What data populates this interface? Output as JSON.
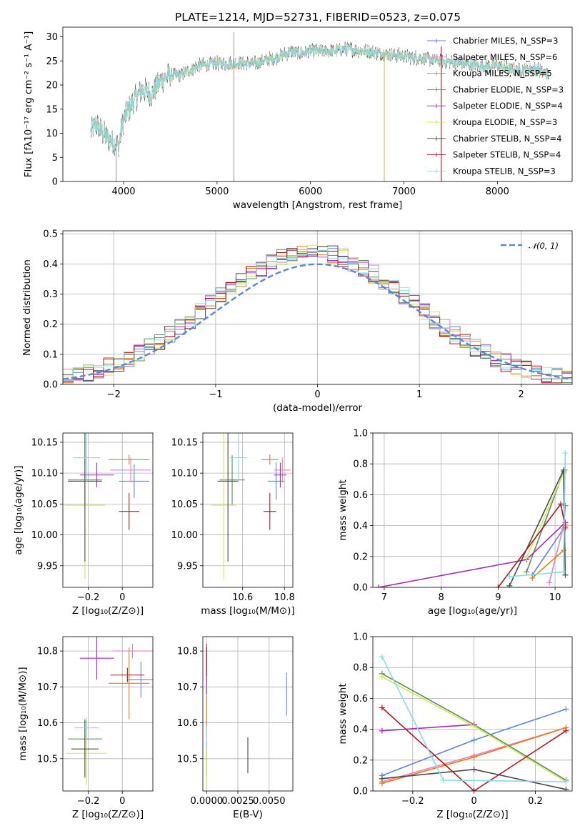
{
  "figure": {
    "title": "PLATE=1214, MJD=52731, FIBERID=0523, z=0.075"
  },
  "colors": {
    "Chabrier MILES": "#6482d6",
    "Salpeter MILES": "#e87fc6",
    "Kroupa MILES": "#ea7c10",
    "Chabrier ELODIE": "#5b8e5b",
    "Salpeter ELODIE": "#9b2fb0",
    "Kroupa ELODIE": "#d3e657",
    "Chabrier STELIB": "#4a4a4a",
    "Salpeter STELIB": "#b5151c",
    "Kroupa STELIB": "#86dbe6",
    "gaussian": "#5b86d4"
  },
  "chart_data": [
    {
      "id": "spectrum",
      "type": "line",
      "title": "PLATE=1214, MJD=52731, FIBERID=0523, z=0.075",
      "xlabel": "wavelength [Angstrom, rest frame]",
      "ylabel": "Flux [fλ10⁻¹⁷ erg cm⁻² s⁻¹ A⁻¹]",
      "xlim": [
        3350,
        8800
      ],
      "ylim": [
        0,
        32
      ],
      "xticks": [
        4000,
        5000,
        6000,
        7000,
        8000
      ],
      "yticks": [
        0,
        5,
        10,
        15,
        20,
        25,
        30
      ],
      "grid": false,
      "legend_position": "top-right",
      "series": [
        {
          "name": "Chabrier MILES, N_SSP=3"
        },
        {
          "name": "Salpeter MILES, N_SSP=6"
        },
        {
          "name": "Kroupa MILES, N_SSP=5"
        },
        {
          "name": "Chabrier ELODIE, N_SSP=3"
        },
        {
          "name": "Salpeter ELODIE, N_SSP=4"
        },
        {
          "name": "Kroupa ELODIE, N_SSP=3"
        },
        {
          "name": "Chabrier STELIB, N_SSP=4"
        },
        {
          "name": "Salpeter STELIB, N_SSP=4"
        },
        {
          "name": "Kroupa STELIB, N_SSP=3"
        }
      ],
      "envelope": {
        "x": [
          3650,
          3700,
          3800,
          3900,
          3950,
          4000,
          4100,
          4200,
          4300,
          4400,
          4500,
          4600,
          4800,
          5000,
          5200,
          5400,
          5600,
          5800,
          5900,
          6000,
          6200,
          6400,
          6600,
          6800,
          7000,
          7200,
          7400,
          7600,
          7800,
          8000,
          8200,
          8400,
          8550
        ],
        "y": [
          10,
          12,
          9.5,
          8,
          7.5,
          13,
          16.5,
          19,
          18,
          21,
          22,
          22,
          24,
          24.5,
          24.5,
          24.5,
          25.5,
          27,
          26.5,
          27,
          27,
          27.5,
          27,
          26.5,
          26,
          25.5,
          25,
          24.5,
          24,
          24,
          23,
          23.5,
          22
        ]
      },
      "spikes": [
        {
          "x": 3920,
          "y": [
            0,
            9
          ]
        },
        {
          "x": 5180,
          "y": [
            0,
            31
          ]
        },
        {
          "x": 6790,
          "y": [
            0,
            27
          ]
        },
        {
          "x": 7400,
          "y": [
            0,
            28
          ]
        }
      ]
    },
    {
      "id": "residuals",
      "type": "histogram",
      "xlabel": "(data-model)/error",
      "ylabel": "Normed distribution",
      "xlim": [
        -2.5,
        2.5
      ],
      "ylim": [
        0,
        0.51
      ],
      "xticks": [
        -2,
        -1,
        0,
        1,
        2
      ],
      "yticks": [
        0.0,
        0.1,
        0.2,
        0.3,
        0.4,
        0.5
      ],
      "grid": true,
      "legend_position": "top-right",
      "legend_label": "𝒩(0, 1)",
      "gaussian": {
        "mean": 0,
        "sigma": 1,
        "peak": 0.399
      },
      "bin_width": 0.1
    },
    {
      "id": "age-vs-Z",
      "type": "scatter",
      "xlabel": "Z [log₁₀(Z/Z⊙)]",
      "ylabel": "age  [log₁₀(age/yr)]",
      "xlim": [
        -0.35,
        0.18
      ],
      "ylim": [
        9.915,
        10.165
      ],
      "xticks": [
        -0.2,
        0.0
      ],
      "yticks": [
        9.95,
        10.0,
        10.05,
        10.1,
        10.15
      ],
      "grid": true,
      "points": [
        {
          "model": "Chabrier MILES",
          "x": 0.07,
          "y": 10.087,
          "xerr": 0.09,
          "yerr": 0.027
        },
        {
          "model": "Salpeter MILES",
          "x": 0.05,
          "y": 10.105,
          "xerr": 0.12,
          "yerr": 0.02
        },
        {
          "model": "Kroupa MILES",
          "x": 0.04,
          "y": 10.122,
          "xerr": 0.12,
          "yerr": 0.008
        },
        {
          "model": "Chabrier ELODIE",
          "x": -0.22,
          "y": 10.089,
          "xerr": 0.1,
          "yerr": 0.04
        },
        {
          "model": "Salpeter ELODIE",
          "x": -0.15,
          "y": 10.097,
          "xerr": 0.1,
          "yerr": 0.02
        },
        {
          "model": "Kroupa ELODIE",
          "x": -0.22,
          "y": 10.048,
          "xerr": 0.12,
          "yerr": 0.12
        },
        {
          "model": "Chabrier STELIB",
          "x": -0.22,
          "y": 10.087,
          "xerr": 0.1,
          "yerr": 0.13
        },
        {
          "model": "Salpeter STELIB",
          "x": 0.04,
          "y": 10.038,
          "xerr": 0.06,
          "yerr": 0.03
        },
        {
          "model": "Kroupa STELIB",
          "x": -0.21,
          "y": 10.125,
          "xerr": 0.08,
          "yerr": 0.04
        }
      ]
    },
    {
      "id": "age-vs-mass",
      "type": "scatter",
      "xlabel": "mass [log₁₀(M/M⊙)]",
      "ylabel": "",
      "xlim": [
        10.41,
        10.84
      ],
      "ylim": [
        9.915,
        10.165
      ],
      "xticks": [
        10.6,
        10.8
      ],
      "yticks": [
        9.95,
        10.0,
        10.05,
        10.1,
        10.15
      ],
      "grid": true,
      "points": [
        {
          "model": "Chabrier MILES",
          "x": 10.76,
          "y": 10.087,
          "xerr": 0.04,
          "yerr": 0.03
        },
        {
          "model": "Salpeter MILES",
          "x": 10.79,
          "y": 10.105,
          "xerr": 0.04,
          "yerr": 0.02
        },
        {
          "model": "Kroupa MILES",
          "x": 10.73,
          "y": 10.122,
          "xerr": 0.04,
          "yerr": 0.008
        },
        {
          "model": "Chabrier ELODIE",
          "x": 10.55,
          "y": 10.089,
          "xerr": 0.06,
          "yerr": 0.04
        },
        {
          "model": "Salpeter ELODIE",
          "x": 10.78,
          "y": 10.097,
          "xerr": 0.03,
          "yerr": 0.02
        },
        {
          "model": "Kroupa ELODIE",
          "x": 10.51,
          "y": 10.048,
          "xerr": 0.06,
          "yerr": 0.12
        },
        {
          "model": "Chabrier STELIB",
          "x": 10.53,
          "y": 10.087,
          "xerr": 0.05,
          "yerr": 0.13
        },
        {
          "model": "Salpeter STELIB",
          "x": 10.73,
          "y": 10.038,
          "xerr": 0.03,
          "yerr": 0.03
        },
        {
          "model": "Kroupa STELIB",
          "x": 10.58,
          "y": 10.125,
          "xerr": 0.04,
          "yerr": 0.04
        }
      ]
    },
    {
      "id": "weight-vs-age",
      "type": "line",
      "xlabel": "age  [log₁₀(age/yr)]",
      "ylabel": "mass weight",
      "xlim": [
        6.8,
        10.3
      ],
      "ylim": [
        0,
        1
      ],
      "xticks": [
        7,
        8,
        9,
        10
      ],
      "yticks": [
        0.0,
        0.2,
        0.4,
        0.6,
        0.8,
        1.0
      ],
      "grid": true,
      "series": [
        {
          "model": "Chabrier MILES",
          "x": [
            9.6,
            10.15,
            10.18
          ],
          "y": [
            0.08,
            0.38,
            0.53
          ]
        },
        {
          "model": "Salpeter MILES",
          "x": [
            9.9,
            10.15,
            10.18
          ],
          "y": [
            0.03,
            0.4,
            0.38
          ]
        },
        {
          "model": "Kroupa MILES",
          "x": [
            9.6,
            10.15,
            10.18
          ],
          "y": [
            0.06,
            0.24,
            0.41
          ]
        },
        {
          "model": "Chabrier ELODIE",
          "x": [
            9.5,
            10.15,
            10.18
          ],
          "y": [
            0.1,
            0.75,
            0.76
          ]
        },
        {
          "model": "Salpeter ELODIE",
          "x": [
            6.9,
            9.5,
            10.18
          ],
          "y": [
            0.0,
            0.18,
            0.42
          ]
        },
        {
          "model": "Kroupa ELODIE",
          "x": [
            9.5,
            10.15,
            10.18
          ],
          "y": [
            0.19,
            0.74,
            0.76
          ]
        },
        {
          "model": "Chabrier STELIB",
          "x": [
            9.2,
            10.15,
            10.18
          ],
          "y": [
            0.01,
            0.76,
            0.08
          ]
        },
        {
          "model": "Salpeter STELIB",
          "x": [
            9.0,
            10.1,
            10.18
          ],
          "y": [
            0.0,
            0.54,
            0.39
          ]
        },
        {
          "model": "Kroupa STELIB",
          "x": [
            9.2,
            10.15,
            10.18
          ],
          "y": [
            0.07,
            0.1,
            0.87
          ]
        }
      ]
    },
    {
      "id": "mass-vs-Z",
      "type": "scatter",
      "xlabel": "Z [log₁₀(Z/Z⊙)]",
      "ylabel": "mass [log₁₀(M/M⊙)]",
      "xlim": [
        -0.35,
        0.18
      ],
      "ylim": [
        10.41,
        10.84
      ],
      "xticks": [
        -0.2,
        0.0
      ],
      "yticks": [
        10.5,
        10.6,
        10.7,
        10.8
      ],
      "grid": true,
      "points": [
        {
          "model": "Chabrier MILES",
          "x": 0.11,
          "y": 10.72,
          "xerr": 0.08,
          "yerr": 0.05
        },
        {
          "model": "Salpeter MILES",
          "x": 0.06,
          "y": 10.8,
          "xerr": 0.12,
          "yerr": 0.02
        },
        {
          "model": "Kroupa MILES",
          "x": 0.04,
          "y": 10.71,
          "xerr": 0.12,
          "yerr": 0.1
        },
        {
          "model": "Chabrier ELODIE",
          "x": -0.22,
          "y": 10.555,
          "xerr": 0.1,
          "yerr": 0.055
        },
        {
          "model": "Salpeter ELODIE",
          "x": -0.15,
          "y": 10.78,
          "xerr": 0.1,
          "yerr": 0.06
        },
        {
          "model": "Kroupa ELODIE",
          "x": -0.21,
          "y": 10.515,
          "xerr": 0.12,
          "yerr": 0.09
        },
        {
          "model": "Chabrier STELIB",
          "x": -0.22,
          "y": 10.527,
          "xerr": 0.08,
          "yerr": 0.08
        },
        {
          "model": "Salpeter STELIB",
          "x": 0.03,
          "y": 10.733,
          "xerr": 0.1,
          "yerr": 0.02
        },
        {
          "model": "Kroupa STELIB",
          "x": -0.21,
          "y": 10.586,
          "xerr": 0.07,
          "yerr": 0.03
        }
      ]
    },
    {
      "id": "mass-vs-EBV",
      "type": "scatter",
      "xlabel": "E(B-V)",
      "ylabel": "",
      "xlim": [
        -0.0003,
        0.0069
      ],
      "ylim": [
        10.41,
        10.84
      ],
      "xticks": [
        0.0,
        0.0025,
        0.005
      ],
      "xticklabels": [
        "0.0000",
        "0.0025",
        "0.0050"
      ],
      "yticks": [
        10.5,
        10.6,
        10.7,
        10.8
      ],
      "grid": true,
      "points": [
        {
          "model": "Chabrier MILES",
          "x": 0.0064,
          "y": 10.68,
          "xerr": 0.0,
          "yerr": 0.06
        },
        {
          "model": "Salpeter MILES",
          "x": 0.0,
          "y": 10.76,
          "xerr": 0.0,
          "yerr": 0.05
        },
        {
          "model": "Kroupa MILES",
          "x": 0.0,
          "y": 10.66,
          "xerr": 0.0,
          "yerr": 0.1
        },
        {
          "model": "Chabrier ELODIE",
          "x": 0.0,
          "y": 10.5,
          "xerr": 0.0,
          "yerr": 0.05
        },
        {
          "model": "Salpeter ELODIE",
          "x": 0.0,
          "y": 10.75,
          "xerr": 0.0,
          "yerr": 0.07
        },
        {
          "model": "Kroupa ELODIE",
          "x": 0.0,
          "y": 10.48,
          "xerr": 0.0,
          "yerr": 0.06
        },
        {
          "model": "Chabrier STELIB",
          "x": 0.0033,
          "y": 10.51,
          "xerr": 0.0,
          "yerr": 0.05
        },
        {
          "model": "Salpeter STELIB",
          "x": 0.0,
          "y": 10.77,
          "xerr": 0.0,
          "yerr": 0.04
        },
        {
          "model": "Kroupa STELIB",
          "x": 0.0,
          "y": 10.56,
          "xerr": 0.0,
          "yerr": 0.03
        }
      ]
    },
    {
      "id": "weight-vs-Z",
      "type": "line",
      "xlabel": "Z [log₁₀(Z/Z⊙)]",
      "ylabel": "mass weight",
      "xlim": [
        -0.33,
        0.32
      ],
      "ylim": [
        0,
        1
      ],
      "xticks": [
        -0.2,
        0.0,
        0.2
      ],
      "yticks": [
        0.0,
        0.2,
        0.4,
        0.6,
        0.8,
        1.0
      ],
      "grid": true,
      "series": [
        {
          "model": "Chabrier MILES",
          "x": [
            -0.3,
            0.0,
            0.3
          ],
          "y": [
            0.1,
            0.33,
            0.53
          ]
        },
        {
          "model": "Salpeter MILES",
          "x": [
            -0.3,
            0.0,
            0.3
          ],
          "y": [
            0.06,
            0.23,
            0.41
          ]
        },
        {
          "model": "Kroupa MILES",
          "x": [
            -0.3,
            0.0,
            0.3
          ],
          "y": [
            0.05,
            0.22,
            0.41
          ]
        },
        {
          "model": "Chabrier ELODIE",
          "x": [
            -0.3,
            0.0,
            0.3
          ],
          "y": [
            0.76,
            0.43,
            0.07
          ]
        },
        {
          "model": "Salpeter ELODIE",
          "x": [
            -0.3,
            0.0
          ],
          "y": [
            0.39,
            0.43
          ]
        },
        {
          "model": "Kroupa ELODIE",
          "x": [
            -0.3,
            0.0,
            0.3
          ],
          "y": [
            0.74,
            0.42,
            0.06
          ]
        },
        {
          "model": "Chabrier STELIB",
          "x": [
            -0.3,
            0.0,
            0.3
          ],
          "y": [
            0.08,
            0.14,
            0.01
          ]
        },
        {
          "model": "Salpeter STELIB",
          "x": [
            -0.3,
            0.0,
            0.3
          ],
          "y": [
            0.54,
            0.0,
            0.39
          ]
        },
        {
          "model": "Kroupa STELIB",
          "x": [
            -0.3,
            -0.1,
            0.3
          ],
          "y": [
            0.87,
            0.07,
            0.06
          ]
        }
      ]
    }
  ]
}
